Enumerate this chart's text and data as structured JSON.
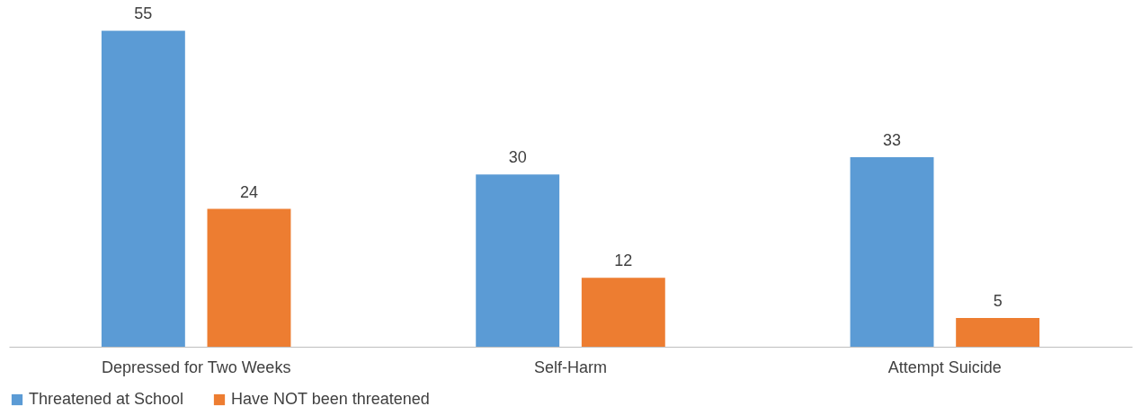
{
  "chart_data": {
    "type": "bar",
    "categories": [
      "Depressed for Two Weeks",
      "Self-Harm",
      "Attempt Suicide"
    ],
    "series": [
      {
        "name": "Threatened at School",
        "color": "#5b9bd5",
        "values": [
          55,
          30,
          33
        ]
      },
      {
        "name": "Have NOT been threatened",
        "color": "#ed7d31",
        "values": [
          24,
          12,
          5
        ]
      }
    ],
    "data_labels": true,
    "legend": "bottom",
    "grid": false
  }
}
